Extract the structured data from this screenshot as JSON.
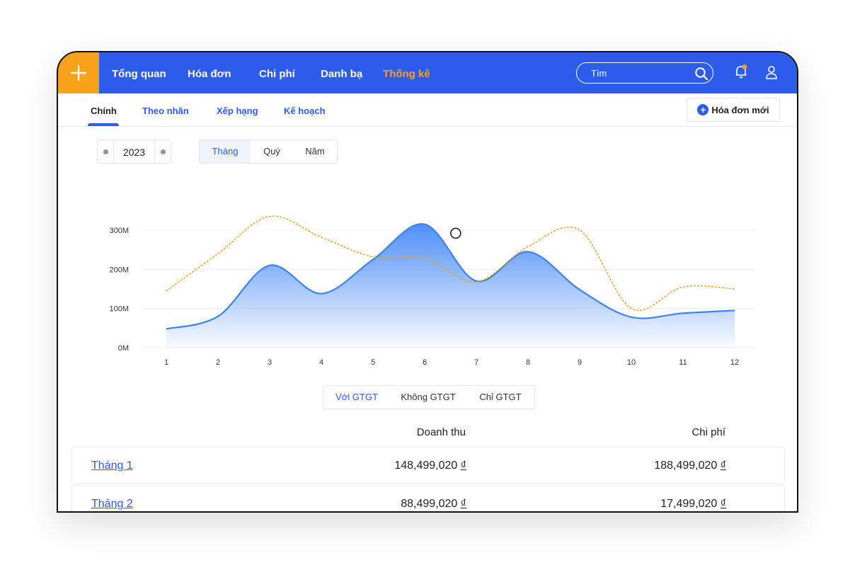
{
  "nav": {
    "items": [
      {
        "label": "Tổng quan"
      },
      {
        "label": "Hóa đơn"
      },
      {
        "label": "Chi phí"
      },
      {
        "label": "Danh bạ"
      },
      {
        "label": "Thống kê"
      }
    ],
    "active_index": 4,
    "search_placeholder": "Tìm",
    "accent_color": "#2d5bea",
    "highlight_color": "#f7a21b"
  },
  "subnav": {
    "tabs": [
      {
        "label": "Chính"
      },
      {
        "label": "Theo nhãn"
      },
      {
        "label": "Xếp hạng"
      },
      {
        "label": "Kế hoạch"
      }
    ],
    "active_index": 0,
    "new_invoice_label": "Hóa đơn mới"
  },
  "filters": {
    "year": "2023",
    "periods": [
      {
        "label": "Tháng"
      },
      {
        "label": "Quý"
      },
      {
        "label": "Năm"
      }
    ],
    "active_period": 0,
    "vat_options": [
      {
        "label": "Với GTGT"
      },
      {
        "label": "Không GTGT"
      },
      {
        "label": "Chỉ GTGT"
      }
    ],
    "active_vat": 0
  },
  "chart_data": {
    "type": "area",
    "categories": [
      "1",
      "2",
      "3",
      "4",
      "5",
      "6",
      "7",
      "8",
      "9",
      "10",
      "11",
      "12"
    ],
    "y_ticks": [
      "0M",
      "100M",
      "200M",
      "300M"
    ],
    "ylim": [
      0,
      300
    ],
    "grid": true,
    "series": [
      {
        "color": "#3b82f6",
        "fill": true,
        "dashed": false,
        "values": [
          48,
          80,
          210,
          138,
          225,
          315,
          170,
          245,
          148,
          78,
          88,
          95
        ]
      },
      {
        "color": "#f29b1d",
        "fill": false,
        "dashed": true,
        "values": [
          145,
          240,
          335,
          282,
          232,
          228,
          168,
          258,
          300,
          100,
          155,
          150
        ]
      }
    ],
    "highlight": {
      "category": "6.6",
      "value": 292
    }
  },
  "table": {
    "headers": {
      "revenue": "Doanh thu",
      "cost": "Chi phí"
    },
    "rows": [
      {
        "label": "Tháng 1",
        "revenue": "148,499,020",
        "cost": "188,499,020"
      },
      {
        "label": "Tháng 2",
        "revenue": "88,499,020",
        "cost": "17,499,020"
      }
    ],
    "currency": "₫"
  }
}
